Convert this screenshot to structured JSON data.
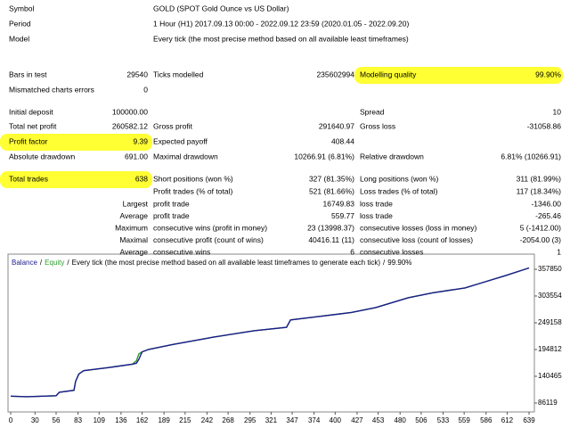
{
  "header": {
    "rows": [
      {
        "label": "Symbol",
        "value": "GOLD (SPOT Gold Ounce vs US Dollar)"
      },
      {
        "label": "Period",
        "value": "1 Hour (H1) 2017.09.13 00:00 - 2022.09.12 23:59 (2020.01.05 - 2022.09.20)"
      },
      {
        "label": "Model",
        "value": "Every tick (the most precise method based on all available least timeframes)"
      }
    ]
  },
  "stats": {
    "rows": [
      {
        "left": [
          "Bars in test",
          "29540"
        ],
        "middle": [
          "Ticks modelled",
          "235602994"
        ],
        "right": [
          "Modelling quality",
          "99.90%"
        ]
      },
      {
        "left": [
          "Mismatched charts errors",
          "0"
        ]
      },
      {
        "left": [
          "Initial deposit",
          "100000.00"
        ],
        "right": [
          "Spread",
          "10"
        ]
      },
      {
        "left": [
          "Total net profit",
          "260582.12"
        ],
        "middle": [
          "Gross profit",
          "291640.97"
        ],
        "right": [
          "Gross loss",
          "-31058.86"
        ]
      },
      {
        "left": [
          "Profit factor",
          "9.39"
        ],
        "middle": [
          "Expected payoff",
          "408.44"
        ]
      },
      {
        "left": [
          "Absolute drawdown",
          "691.00"
        ],
        "middle": [
          "Maximal drawdown",
          "10266.91 (6.81%)"
        ],
        "right": [
          "Relative drawdown",
          "6.81% (10266.91)"
        ]
      },
      {
        "left": [
          "Total trades",
          "638"
        ],
        "middle": [
          "Short positions (won %)",
          "327 (81.35%)"
        ],
        "right": [
          "Long positions (won %)",
          "311 (81.99%)"
        ]
      },
      {
        "middle": [
          "Profit trades (% of total)",
          "521 (81.66%)"
        ],
        "right": [
          "Loss trades (% of total)",
          "117 (18.34%)"
        ]
      },
      {
        "group": "Largest",
        "middle": [
          "profit trade",
          "16749.83"
        ],
        "right": [
          "loss trade",
          "-1346.00"
        ]
      },
      {
        "group": "Average",
        "middle": [
          "profit trade",
          "559.77"
        ],
        "right": [
          "loss trade",
          "-265.46"
        ]
      },
      {
        "group": "Maximum",
        "middle": [
          "consecutive wins (profit in money)",
          "23 (13998.37)"
        ],
        "right": [
          "consecutive losses (loss in money)",
          "5 (-1412.00)"
        ]
      },
      {
        "group": "Maximal",
        "middle": [
          "consecutive profit (count of wins)",
          "40416.11 (11)"
        ],
        "right": [
          "consecutive loss (count of losses)",
          "-2054.00 (3)"
        ]
      },
      {
        "group": "Average",
        "middle": [
          "consecutive wins",
          "6"
        ],
        "right": [
          "consecutive losses",
          "1"
        ]
      }
    ]
  },
  "chart_data": {
    "type": "line",
    "annotation": "Every tick (the most precise method based on all available least timeframes to generate each tick)",
    "quality": "99.90%",
    "separator": "/",
    "x": [
      0,
      20,
      56,
      60,
      78,
      80,
      84,
      90,
      120,
      150,
      155,
      158,
      162,
      170,
      200,
      250,
      300,
      340,
      345,
      380,
      420,
      450,
      470,
      490,
      520,
      560,
      580,
      610,
      639
    ],
    "series": [
      {
        "name": "Equity",
        "color": "#2e9e2e",
        "values": [
          100000,
          99000,
          101000,
          108000,
          112000,
          130000,
          145000,
          152000,
          158000,
          165000,
          172000,
          186000,
          190000,
          195000,
          205000,
          220000,
          233000,
          240000,
          255000,
          262000,
          270000,
          280000,
          290000,
          300000,
          310000,
          320000,
          330000,
          345000,
          360582
        ]
      },
      {
        "name": "Balance",
        "color": "#1c1c8c",
        "values": [
          100000,
          99000,
          101000,
          108000,
          112000,
          130000,
          145000,
          152000,
          158000,
          165000,
          167000,
          175000,
          190000,
          195000,
          205000,
          220000,
          233000,
          240000,
          255000,
          262000,
          270000,
          280000,
          290000,
          300000,
          310000,
          320000,
          330000,
          345000,
          360582
        ]
      }
    ],
    "xlim": [
      0,
      645
    ],
    "xticks": [
      0,
      30,
      56,
      83,
      109,
      136,
      162,
      189,
      215,
      242,
      268,
      295,
      321,
      347,
      374,
      400,
      427,
      453,
      480,
      506,
      533,
      559,
      586,
      612,
      639
    ],
    "ylim": [
      68000,
      383200
    ],
    "yticks": [
      86119,
      140465,
      194812,
      249158,
      303554,
      357850
    ]
  }
}
